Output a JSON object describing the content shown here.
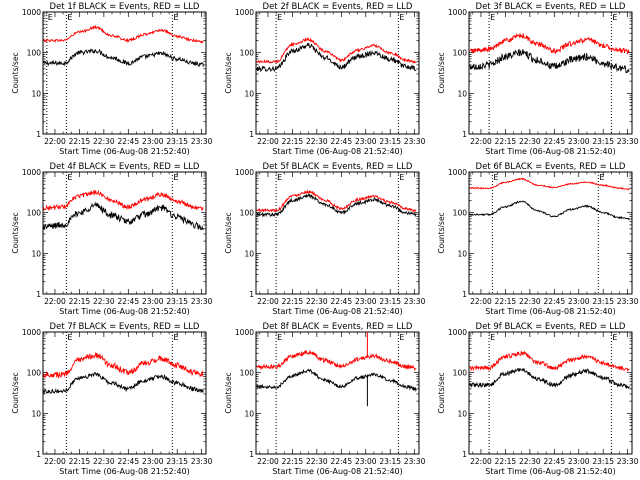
{
  "figure": {
    "xlabel": "Start Time (06-Aug-08 21:52:40)",
    "ylabel": "Counts/sec",
    "x_ticks": [
      "22:00",
      "22:15",
      "22:30",
      "22:45",
      "23:00",
      "23:15",
      "23:30"
    ],
    "y_ticks": [
      "1",
      "10",
      "100",
      "1000"
    ],
    "marker_label": "E",
    "colors": {
      "events": "#000000",
      "lld": "#ff0000",
      "marker": "#000000",
      "background": "#ffffff"
    }
  },
  "chart_data": [
    {
      "type": "line",
      "title": "Det 1f BLACK = Events, RED = LLD",
      "x_range": [
        "21:52:40",
        "23:32:40"
      ],
      "y_scale": "log",
      "ylim": [
        1,
        1000
      ],
      "x_ticks": [
        "22:00",
        "22:15",
        "22:30",
        "22:45",
        "23:00",
        "23:15",
        "23:30"
      ],
      "markers": [
        "21:55",
        "22:07",
        "23:12"
      ],
      "series": [
        {
          "name": "Events",
          "color": "#000000",
          "noise": 0.05,
          "x": [
            "21:53",
            "22:05",
            "22:15",
            "22:25",
            "22:35",
            "22:45",
            "22:55",
            "23:05",
            "23:15",
            "23:25",
            "23:31"
          ],
          "y": [
            55,
            55,
            100,
            110,
            75,
            55,
            80,
            95,
            70,
            55,
            50
          ]
        },
        {
          "name": "LLD",
          "color": "#ff0000",
          "noise": 0.03,
          "x": [
            "21:53",
            "22:05",
            "22:15",
            "22:25",
            "22:35",
            "22:45",
            "22:55",
            "23:05",
            "23:15",
            "23:25",
            "23:31"
          ],
          "y": [
            200,
            200,
            320,
            420,
            260,
            200,
            280,
            360,
            250,
            200,
            185
          ]
        }
      ]
    },
    {
      "type": "line",
      "title": "Det 2f BLACK = Events, RED = LLD",
      "x_range": [
        "21:52:40",
        "23:32:40"
      ],
      "y_scale": "log",
      "ylim": [
        1,
        1000
      ],
      "x_ticks": [
        "22:00",
        "22:15",
        "22:30",
        "22:45",
        "23:00",
        "23:15",
        "23:30"
      ],
      "markers": [
        "22:05",
        "23:20"
      ],
      "series": [
        {
          "name": "Events",
          "color": "#000000",
          "noise": 0.06,
          "x": [
            "21:53",
            "22:05",
            "22:15",
            "22:25",
            "22:35",
            "22:45",
            "22:55",
            "23:05",
            "23:15",
            "23:25",
            "23:31"
          ],
          "y": [
            40,
            40,
            110,
            150,
            75,
            45,
            80,
            100,
            70,
            45,
            40
          ]
        },
        {
          "name": "LLD",
          "color": "#ff0000",
          "noise": 0.03,
          "x": [
            "21:53",
            "22:05",
            "22:15",
            "22:25",
            "22:35",
            "22:45",
            "22:55",
            "23:05",
            "23:15",
            "23:25",
            "23:31"
          ],
          "y": [
            60,
            60,
            160,
            210,
            110,
            65,
            115,
            150,
            100,
            65,
            58
          ]
        }
      ]
    },
    {
      "type": "line",
      "title": "Det 3f BLACK = Events, RED = LLD",
      "x_range": [
        "21:52:40",
        "23:32:40"
      ],
      "y_scale": "log",
      "ylim": [
        1,
        1000
      ],
      "x_ticks": [
        "22:00",
        "22:15",
        "22:30",
        "22:45",
        "23:00",
        "23:15",
        "23:30"
      ],
      "markers": [
        "22:05",
        "23:20"
      ],
      "series": [
        {
          "name": "Events",
          "color": "#000000",
          "noise": 0.09,
          "x": [
            "21:53",
            "22:05",
            "22:15",
            "22:25",
            "22:35",
            "22:45",
            "22:55",
            "23:05",
            "23:15",
            "23:25",
            "23:31"
          ],
          "y": [
            45,
            50,
            80,
            100,
            65,
            45,
            65,
            80,
            55,
            42,
            38
          ]
        },
        {
          "name": "LLD",
          "color": "#ff0000",
          "noise": 0.06,
          "x": [
            "21:53",
            "22:05",
            "22:15",
            "22:25",
            "22:35",
            "22:45",
            "22:55",
            "23:05",
            "23:15",
            "23:25",
            "23:31"
          ],
          "y": [
            110,
            120,
            200,
            260,
            160,
            110,
            165,
            210,
            150,
            115,
            105
          ]
        }
      ]
    },
    {
      "type": "line",
      "title": "Det 4f BLACK = Events, RED = LLD",
      "x_range": [
        "21:52:40",
        "23:32:40"
      ],
      "y_scale": "log",
      "ylim": [
        1,
        1000
      ],
      "x_ticks": [
        "22:00",
        "22:15",
        "22:30",
        "22:45",
        "23:00",
        "23:15",
        "23:30"
      ],
      "markers": [
        "22:07",
        "23:12"
      ],
      "series": [
        {
          "name": "Events",
          "color": "#000000",
          "noise": 0.08,
          "x": [
            "21:53",
            "22:05",
            "22:15",
            "22:25",
            "22:35",
            "22:45",
            "22:55",
            "23:05",
            "23:15",
            "23:25",
            "23:31"
          ],
          "y": [
            45,
            50,
            100,
            150,
            85,
            60,
            90,
            130,
            80,
            50,
            40
          ]
        },
        {
          "name": "LLD",
          "color": "#ff0000",
          "noise": 0.05,
          "x": [
            "21:53",
            "22:05",
            "22:15",
            "22:25",
            "22:35",
            "22:45",
            "22:55",
            "23:05",
            "23:15",
            "23:25",
            "23:31"
          ],
          "y": [
            130,
            140,
            260,
            320,
            200,
            140,
            210,
            280,
            190,
            140,
            125
          ]
        }
      ]
    },
    {
      "type": "line",
      "title": "Det 5f BLACK = Events, RED = LLD",
      "x_range": [
        "21:52:40",
        "23:32:40"
      ],
      "y_scale": "log",
      "ylim": [
        1,
        1000
      ],
      "x_ticks": [
        "22:00",
        "22:15",
        "22:30",
        "22:45",
        "23:00",
        "23:15",
        "23:30"
      ],
      "markers": [
        "22:05",
        "23:20"
      ],
      "series": [
        {
          "name": "Events",
          "color": "#000000",
          "noise": 0.04,
          "x": [
            "21:53",
            "22:05",
            "22:15",
            "22:25",
            "22:35",
            "22:45",
            "22:55",
            "23:05",
            "23:15",
            "23:25",
            "23:31"
          ],
          "y": [
            90,
            90,
            200,
            260,
            160,
            100,
            170,
            210,
            150,
            100,
            90
          ]
        },
        {
          "name": "LLD",
          "color": "#ff0000",
          "noise": 0.03,
          "x": [
            "21:53",
            "22:05",
            "22:15",
            "22:25",
            "22:35",
            "22:45",
            "22:55",
            "23:05",
            "23:15",
            "23:25",
            "23:31"
          ],
          "y": [
            115,
            115,
            260,
            330,
            200,
            125,
            210,
            250,
            180,
            125,
            110
          ]
        }
      ]
    },
    {
      "type": "line",
      "title": "Det 6f BLACK = Events, RED = LLD",
      "x_range": [
        "21:52:40",
        "23:32:40"
      ],
      "y_scale": "log",
      "ylim": [
        1,
        1000
      ],
      "x_ticks": [
        "22:00",
        "22:15",
        "22:30",
        "22:45",
        "23:00",
        "23:15",
        "23:30"
      ],
      "markers": [
        "22:07",
        "23:12"
      ],
      "series": [
        {
          "name": "Events",
          "color": "#000000",
          "noise": 0.02,
          "x": [
            "21:53",
            "22:05",
            "22:15",
            "22:25",
            "22:35",
            "22:45",
            "22:55",
            "23:05",
            "23:15",
            "23:25",
            "23:31"
          ],
          "y": [
            90,
            90,
            140,
            190,
            110,
            80,
            120,
            145,
            100,
            75,
            70
          ]
        },
        {
          "name": "LLD",
          "color": "#ff0000",
          "noise": 0.015,
          "x": [
            "21:53",
            "22:05",
            "22:15",
            "22:25",
            "22:35",
            "22:45",
            "22:55",
            "23:05",
            "23:15",
            "23:25",
            "23:31"
          ],
          "y": [
            400,
            400,
            560,
            680,
            470,
            420,
            510,
            560,
            470,
            400,
            380
          ]
        }
      ]
    },
    {
      "type": "line",
      "title": "Det 7f BLACK = Events, RED = LLD",
      "x_range": [
        "21:52:40",
        "23:32:40"
      ],
      "y_scale": "log",
      "ylim": [
        1,
        1000
      ],
      "x_ticks": [
        "22:00",
        "22:15",
        "22:30",
        "22:45",
        "23:00",
        "23:15",
        "23:30"
      ],
      "markers": [
        "22:07",
        "23:12"
      ],
      "series": [
        {
          "name": "Events",
          "color": "#000000",
          "noise": 0.05,
          "x": [
            "21:53",
            "22:05",
            "22:15",
            "22:25",
            "22:35",
            "22:45",
            "22:55",
            "23:05",
            "23:15",
            "23:25",
            "23:31"
          ],
          "y": [
            35,
            35,
            75,
            90,
            55,
            40,
            65,
            80,
            55,
            40,
            35
          ]
        },
        {
          "name": "LLD",
          "color": "#ff0000",
          "noise": 0.07,
          "x": [
            "21:53",
            "22:05",
            "22:15",
            "22:25",
            "22:35",
            "22:45",
            "22:55",
            "23:05",
            "23:15",
            "23:25",
            "23:31"
          ],
          "y": [
            90,
            90,
            200,
            270,
            150,
            100,
            170,
            220,
            150,
            100,
            90
          ]
        }
      ]
    },
    {
      "type": "line",
      "title": "Det 8f BLACK = Events, RED = LLD",
      "x_range": [
        "21:52:40",
        "23:32:40"
      ],
      "y_scale": "log",
      "ylim": [
        1,
        1000
      ],
      "x_ticks": [
        "22:00",
        "22:15",
        "22:30",
        "22:45",
        "23:00",
        "23:15",
        "23:30"
      ],
      "markers": [
        "22:05",
        "23:20"
      ],
      "spikes": [
        {
          "series": "LLD",
          "x": "23:01",
          "y": 1000
        },
        {
          "series": "Events",
          "x": "23:01",
          "y": 15
        }
      ],
      "series": [
        {
          "name": "Events",
          "color": "#000000",
          "noise": 0.04,
          "x": [
            "21:53",
            "22:05",
            "22:15",
            "22:25",
            "22:35",
            "22:45",
            "22:55",
            "23:05",
            "23:15",
            "23:25",
            "23:31"
          ],
          "y": [
            45,
            45,
            85,
            110,
            65,
            45,
            75,
            90,
            65,
            45,
            40
          ]
        },
        {
          "name": "LLD",
          "color": "#ff0000",
          "noise": 0.05,
          "x": [
            "21:53",
            "22:05",
            "22:15",
            "22:25",
            "22:35",
            "22:45",
            "22:55",
            "23:05",
            "23:15",
            "23:25",
            "23:31"
          ],
          "y": [
            140,
            140,
            260,
            320,
            200,
            140,
            210,
            260,
            190,
            140,
            130
          ]
        }
      ]
    },
    {
      "type": "line",
      "title": "Det 9f BLACK = Events, RED = LLD",
      "x_range": [
        "21:52:40",
        "23:32:40"
      ],
      "y_scale": "log",
      "ylim": [
        1,
        1000
      ],
      "x_ticks": [
        "22:00",
        "22:15",
        "22:30",
        "22:45",
        "23:00",
        "23:15",
        "23:30"
      ],
      "markers": [
        "22:05",
        "23:20"
      ],
      "series": [
        {
          "name": "Events",
          "color": "#000000",
          "noise": 0.05,
          "x": [
            "21:53",
            "22:05",
            "22:15",
            "22:25",
            "22:35",
            "22:45",
            "22:55",
            "23:05",
            "23:15",
            "23:25",
            "23:31"
          ],
          "y": [
            50,
            50,
            95,
            120,
            70,
            50,
            85,
            110,
            75,
            50,
            45
          ]
        },
        {
          "name": "LLD",
          "color": "#ff0000",
          "noise": 0.05,
          "x": [
            "21:53",
            "22:05",
            "22:15",
            "22:25",
            "22:35",
            "22:45",
            "22:55",
            "23:05",
            "23:15",
            "23:25",
            "23:31"
          ],
          "y": [
            130,
            130,
            250,
            300,
            180,
            130,
            200,
            260,
            170,
            130,
            120
          ]
        }
      ]
    }
  ]
}
